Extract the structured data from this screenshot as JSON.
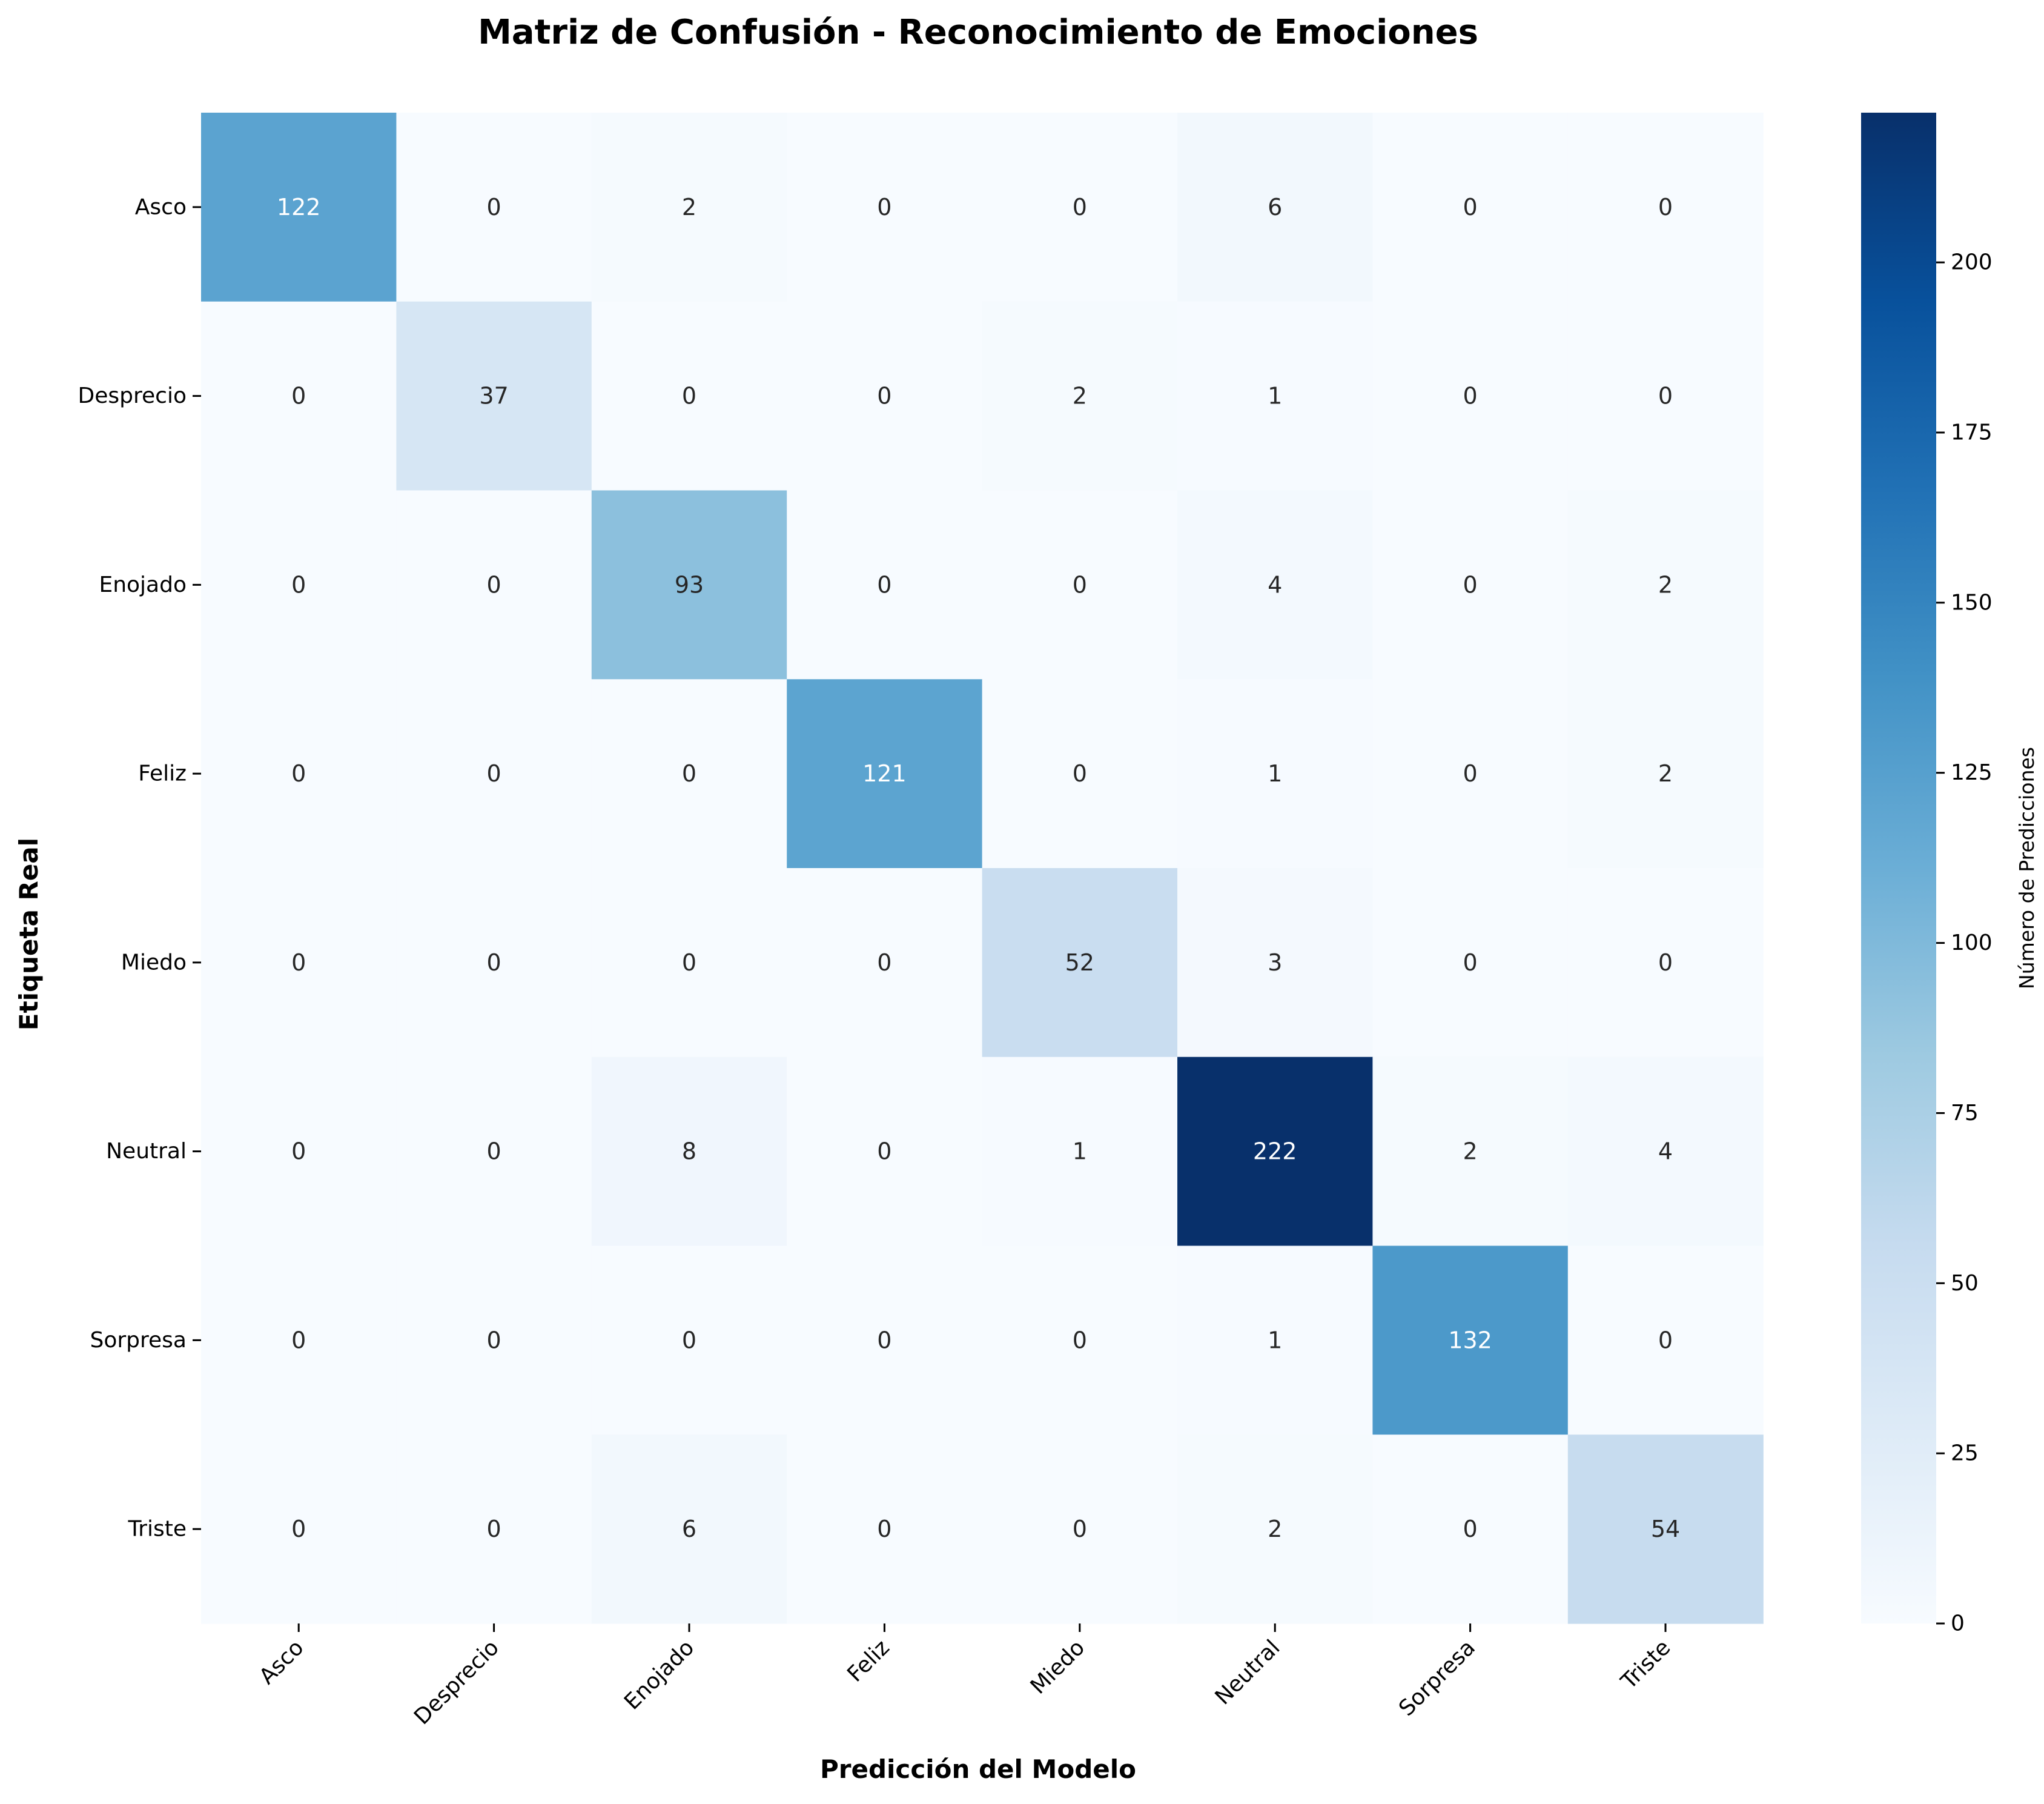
{
  "chart_data": {
    "type": "heatmap",
    "title": "Matriz de Confusión - Reconocimiento de Emociones",
    "xlabel": "Predicción del Modelo",
    "ylabel": "Etiqueta Real",
    "x_categories": [
      "Asco",
      "Desprecio",
      "Enojado",
      "Feliz",
      "Miedo",
      "Neutral",
      "Sorpresa",
      "Triste"
    ],
    "y_categories": [
      "Asco",
      "Desprecio",
      "Enojado",
      "Feliz",
      "Miedo",
      "Neutral",
      "Sorpresa",
      "Triste"
    ],
    "values": [
      [
        122,
        0,
        2,
        0,
        0,
        6,
        0,
        0
      ],
      [
        0,
        37,
        0,
        0,
        2,
        1,
        0,
        0
      ],
      [
        0,
        0,
        93,
        0,
        0,
        4,
        0,
        2
      ],
      [
        0,
        0,
        0,
        121,
        0,
        1,
        0,
        2
      ],
      [
        0,
        0,
        0,
        0,
        52,
        3,
        0,
        0
      ],
      [
        0,
        0,
        8,
        0,
        1,
        222,
        2,
        4
      ],
      [
        0,
        0,
        0,
        0,
        0,
        1,
        132,
        0
      ],
      [
        0,
        0,
        6,
        0,
        0,
        2,
        0,
        54
      ]
    ],
    "colorbar": {
      "label": "Número de Predicciones",
      "min": 0,
      "max": 222,
      "ticks": [
        0,
        25,
        50,
        75,
        100,
        125,
        150,
        175,
        200
      ]
    },
    "colormap": "Blues",
    "colors": {
      "blues_stops": [
        "#f7fbff",
        "#deebf7",
        "#c6dbef",
        "#9ecae1",
        "#6baed6",
        "#4292c6",
        "#2171b5",
        "#08519c",
        "#08306b"
      ],
      "text_dark": "#262626",
      "text_light": "#ffffff"
    },
    "grid": false
  }
}
